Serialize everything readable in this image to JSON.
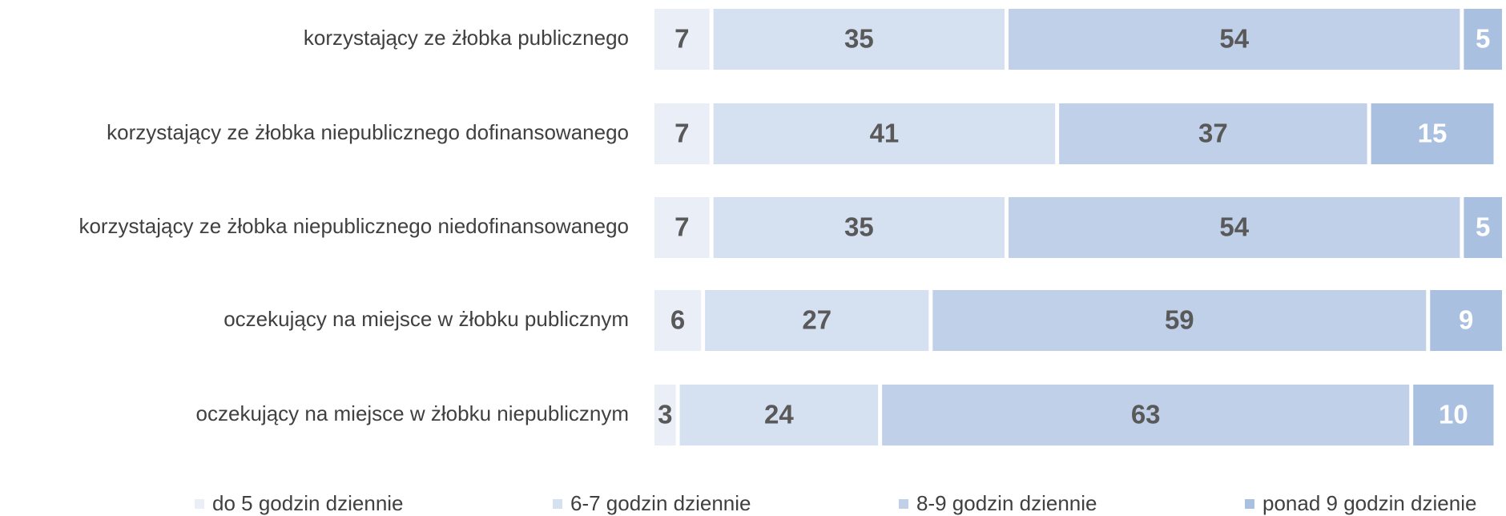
{
  "chart_data": {
    "type": "stacked-bar",
    "categories": [
      "korzystający ze żłobka publicznego",
      "korzystający ze żłobka niepublicznego dofinansowanego",
      "korzystający ze żłobka niepublicznego niedofinansowanego",
      "oczekujący na miejsce w żłobku publicznym",
      "oczekujący na miejsce w żłobku niepublicznym"
    ],
    "series": [
      {
        "name": "do 5 godzin dziennie",
        "color": "#e9eef7",
        "label_color": "#595959",
        "values": [
          7,
          7,
          7,
          6,
          3
        ]
      },
      {
        "name": "6-7 godzin dziennie",
        "color": "#d5e0f1",
        "label_color": "#595959",
        "values": [
          35,
          41,
          35,
          27,
          24
        ]
      },
      {
        "name": "8-9 godzin dziennie",
        "color": "#bfd0e8",
        "label_color": "#595959",
        "values": [
          54,
          37,
          54,
          59,
          63
        ]
      },
      {
        "name": "ponad 9 godzin dzienie",
        "color": "#a9c0e0",
        "label_color": "#ffffff",
        "values": [
          5,
          15,
          5,
          9,
          10
        ]
      }
    ],
    "legend": "bottom"
  }
}
